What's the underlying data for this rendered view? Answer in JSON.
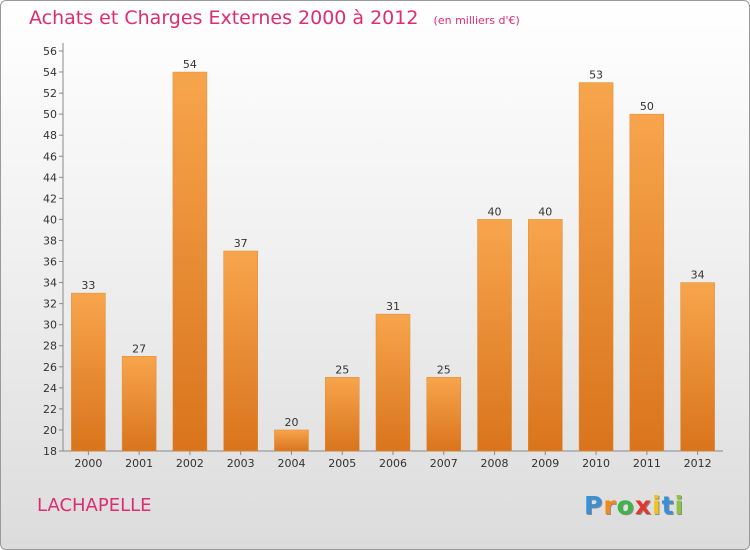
{
  "header": {
    "title": "Achats et Charges Externes 2000 à 2012",
    "subtitle": "(en milliers d'€)"
  },
  "footer": {
    "commune": "LACHAPELLE",
    "logo_letters": [
      "P",
      "r",
      "o",
      "x",
      "i",
      "t",
      "i"
    ],
    "logo_colors": [
      "#3b8fd4",
      "#f08a1c",
      "#3db54a",
      "#e0372e",
      "#f0c419",
      "#3b8fd4",
      "#8cc63f"
    ]
  },
  "colors": {
    "bar": "#f39c3d",
    "accent": "#de2c73"
  },
  "chart_data": {
    "type": "bar",
    "title": "Achats et Charges Externes 2000 à 2012",
    "subtitle": "(en milliers d'€)",
    "categories": [
      "2000",
      "2001",
      "2002",
      "2003",
      "2004",
      "2005",
      "2006",
      "2007",
      "2008",
      "2009",
      "2010",
      "2011",
      "2012"
    ],
    "values": [
      33,
      27,
      54,
      37,
      20,
      25,
      31,
      25,
      40,
      40,
      53,
      50,
      34
    ],
    "ylim": [
      18,
      56
    ],
    "yticks": [
      18,
      20,
      22,
      24,
      26,
      28,
      30,
      32,
      34,
      36,
      38,
      40,
      42,
      44,
      46,
      48,
      50,
      52,
      54,
      56
    ],
    "grid": false,
    "legend": "none"
  }
}
